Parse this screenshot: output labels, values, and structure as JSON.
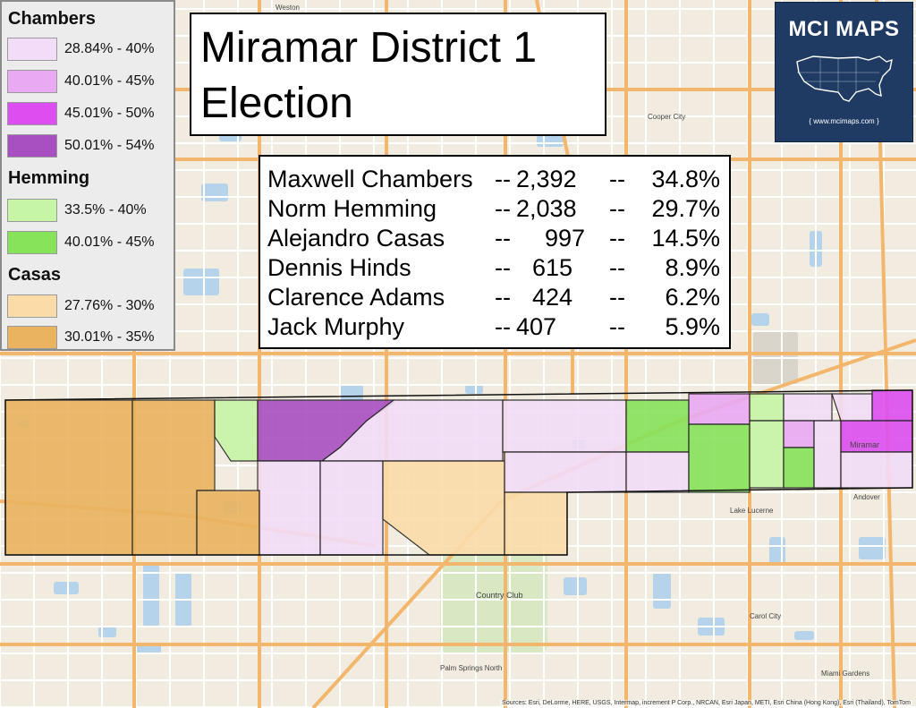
{
  "legend": {
    "sections": [
      {
        "title": "Chambers",
        "items": [
          {
            "label": "28.84% - 40%",
            "color": "#f2dcf7"
          },
          {
            "label": "40.01% - 45%",
            "color": "#e9a9f3"
          },
          {
            "label": "45.01% - 50%",
            "color": "#dc4ef0"
          },
          {
            "label": "50.01% - 54%",
            "color": "#a84fc2"
          }
        ]
      },
      {
        "title": "Hemming",
        "items": [
          {
            "label": "33.5% - 40%",
            "color": "#c6f5a6"
          },
          {
            "label": "40.01% - 45%",
            "color": "#86e35a"
          }
        ]
      },
      {
        "title": "Casas",
        "items": [
          {
            "label": "27.76% - 30%",
            "color": "#fbdca9"
          },
          {
            "label": "30.01% - 35%",
            "color": "#eab35f"
          }
        ]
      }
    ]
  },
  "title": {
    "line1": "Miramar District 1",
    "line2": "Election"
  },
  "results": [
    {
      "name": "Maxwell Chambers",
      "sep1": "--",
      "votes": "2,392",
      "sep2": "--",
      "pct": "34.8%"
    },
    {
      "name": "Norm Hemming",
      "sep1": "--",
      "votes": "2,038",
      "sep2": "--",
      "pct": "29.7%"
    },
    {
      "name": "Alejandro Casas",
      "sep1": "--",
      "votes": "997",
      "sep2": "--",
      "pct": "14.5%"
    },
    {
      "name": "Dennis Hinds",
      "sep1": "--",
      "votes": "615",
      "sep2": "--",
      "pct": "8.9%"
    },
    {
      "name": "Clarence Adams",
      "sep1": "--",
      "votes": "424",
      "sep2": "--",
      "pct": "6.2%"
    },
    {
      "name": "Jack Murphy",
      "sep1": "--",
      "votes": "407",
      "sep2": "--",
      "pct": "5.9%"
    }
  ],
  "logo": {
    "title": "MCI MAPS",
    "url": "{ www.mcimaps.com }",
    "icon": "usa-map-icon"
  },
  "attribution": "Sources: Esri, DeLorme, HERE, USGS, Intermap, increment P Corp., NRCAN, Esri Japan, METI, Esri China (Hong Kong), Esri (Thailand), TomTom",
  "map_labels": {
    "miramar": "Miramar",
    "lake_lucerne": "Lake Lucerne",
    "country_club": "Country Club",
    "andover": "Andover",
    "carol_city": "Carol City",
    "palm_springs_north": "Palm Springs North",
    "miami_gardens": "Miami Gardens",
    "cooper_city": "Cooper City",
    "weston": "Weston"
  },
  "colors": {
    "basemap": "#f1ecdf",
    "road_major": "#f2b76d",
    "road_minor": "#ffffff",
    "water": "#aed0ec",
    "park": "#d7e8c2"
  }
}
